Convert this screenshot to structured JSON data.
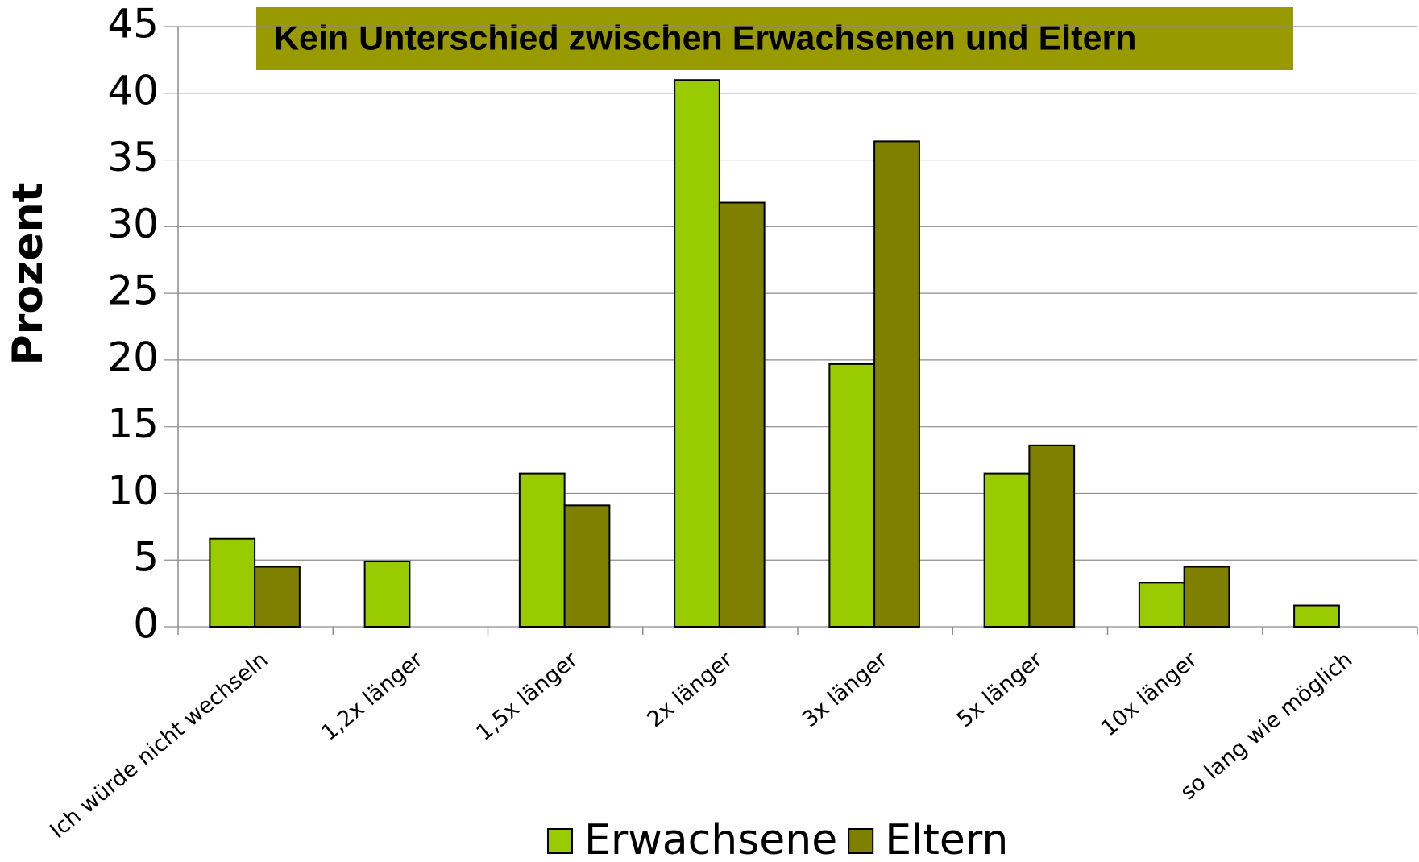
{
  "chart_data": {
    "type": "bar",
    "title": "Kein Unterschied zwischen Erwachsenen und Eltern",
    "y_label": "Prozent",
    "categories": [
      "Ich würde nicht wechseln",
      "1,2x länger",
      "1,5x länger",
      "2x länger",
      "3x länger",
      "5x länger",
      "10x länger",
      "so lang wie möglich"
    ],
    "series": [
      {
        "name": "Erwachsene",
        "color": "#99cc00",
        "values": [
          6.6,
          4.9,
          11.5,
          41.0,
          19.7,
          11.5,
          3.3,
          1.6
        ]
      },
      {
        "name": "Eltern",
        "color": "#808000",
        "values": [
          4.5,
          null,
          9.1,
          31.8,
          36.4,
          13.6,
          4.5,
          null
        ]
      }
    ],
    "ylim": [
      0,
      45
    ],
    "yticks": [
      0,
      5,
      10,
      15,
      20,
      25,
      30,
      35,
      40,
      45
    ],
    "grid": true
  }
}
